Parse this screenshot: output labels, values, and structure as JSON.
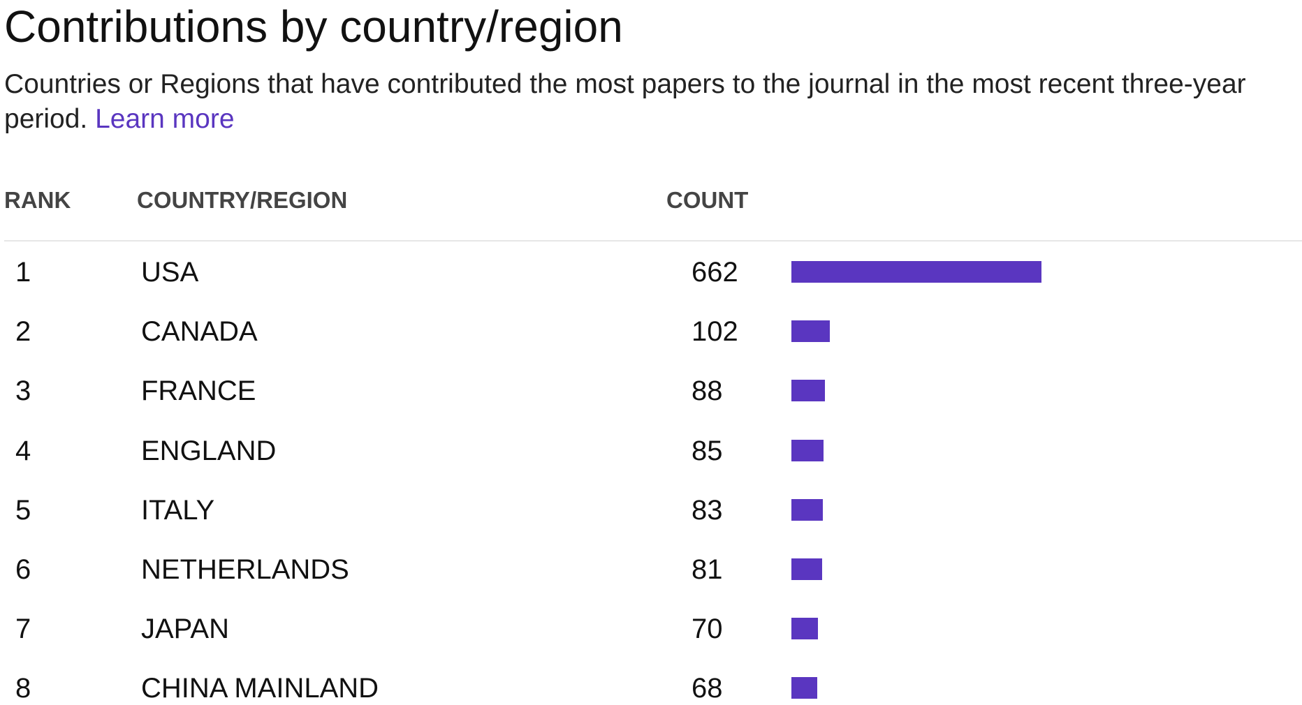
{
  "header": {
    "title": "Contributions by country/region",
    "subtitle": "Countries or Regions that have contributed the most papers to the journal in the most recent three-year period.",
    "link": "Learn more"
  },
  "table": {
    "columns": [
      "RANK",
      "COUNTRY/REGION",
      "COUNT"
    ],
    "rows": [
      [
        "1",
        "USA",
        662
      ],
      [
        "2",
        "CANADA",
        102
      ],
      [
        "3",
        "FRANCE",
        88
      ],
      [
        "4",
        "ENGLAND",
        85
      ],
      [
        "5",
        "ITALY",
        83
      ],
      [
        "6",
        "NETHERLANDS",
        81
      ],
      [
        "7",
        "JAPAN",
        70
      ],
      [
        "8",
        "CHINA MAINLAND",
        68
      ]
    ],
    "bar_color": "#5a36c0"
  }
}
